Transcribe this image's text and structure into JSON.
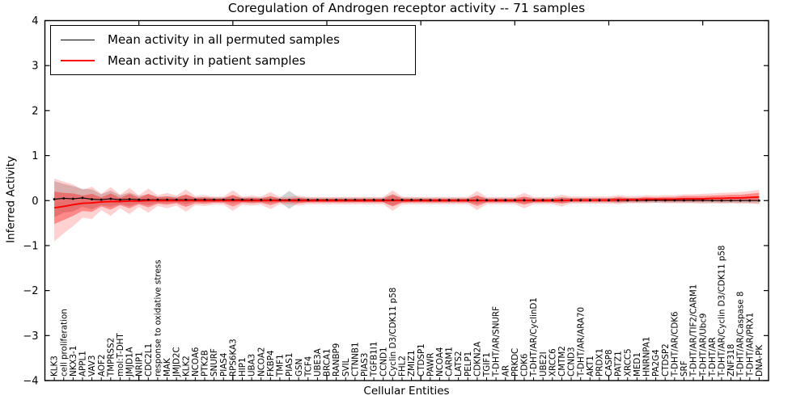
{
  "title": "Coregulation of Androgen receptor activity -- 71 samples",
  "legend": {
    "items": [
      {
        "label": "Mean activity in all permuted samples",
        "color": "#000000",
        "thickness": 1.5
      },
      {
        "label": "Mean activity in patient samples",
        "color": "#ff0000",
        "thickness": 2
      }
    ]
  },
  "chart_data": {
    "type": "line",
    "title": "Coregulation of Androgen receptor activity -- 71 samples",
    "xlabel": "Cellular Entities",
    "ylabel": "Inferred Activity",
    "ylim": [
      -4,
      4
    ],
    "yticks": [
      4,
      3,
      2,
      1,
      0,
      -1,
      -2,
      -3,
      -4
    ],
    "grid": false,
    "legend_position": "upper left",
    "colors": {
      "permuted": "#000000",
      "patient": "#ff0000",
      "band_outer": "rgba(255,0,0,0.18)",
      "band_inner": "rgba(255,0,0,0.35)",
      "band_permuted": "rgba(80,80,80,0.25)"
    },
    "categories": [
      "KLK3",
      "cell proliferation",
      "NKX3-1",
      "APPL1",
      "VAV3",
      "AOF2",
      "TMPRSS2",
      "mol:T-DHT",
      "JMJD1A",
      "NRIP1",
      "CDC2L1",
      "response to oxidative stress",
      "MAK",
      "JMJD2C",
      "KLK2",
      "NCOA6",
      "PTK2B",
      "SNURF",
      "PIAS4",
      "RPS6KA3",
      "HIP1",
      "UBA3",
      "NCOA2",
      "FKBP4",
      "TMF1",
      "PIAS1",
      "GSN",
      "TCF4",
      "UBE3A",
      "BRCA1",
      "RANBP9",
      "SVIL",
      "CTNNB1",
      "PIAS3",
      "TGFB1I1",
      "CCND1",
      "Cyclin D3/CDK11 p58",
      "FHL2",
      "ZMIZ1",
      "CTDSP1",
      "PAWR",
      "NCOA4",
      "CARM1",
      "LATS2",
      "PELP1",
      "CDKN2A",
      "TGIF1",
      "T-DHT/AR/SNURF",
      "AR",
      "PRKDC",
      "CDK6",
      "T-DHT/AR/CyclinD1",
      "UBE2I",
      "XRCC6",
      "CMTM2",
      "CCND3",
      "T-DHT/AR/ARA70",
      "AKT1",
      "PRDX1",
      "CASP8",
      "PATZ1",
      "XRCC5",
      "MED1",
      "HNRNPA1",
      "PA2G4",
      "CTDSP2",
      "T-DHT/AR/CDK6",
      "SRF",
      "T-DHT/AR/TIF2/CARM1",
      "T-DHT/AR/Ubc9",
      "T-DHT/AR",
      "T-DHT/AR/Cyclin D3/CDK11 p58",
      "ZNF318",
      "T-DHT/AR/Caspase 8",
      "T-DHT/AR/PRX1",
      "DNA-PK"
    ],
    "series": [
      {
        "name": "Mean activity in all permuted samples",
        "color": "#000000",
        "marker": "dot",
        "values": [
          0.03,
          0.05,
          0.04,
          0.06,
          0.03,
          0.02,
          0.04,
          0.02,
          0.03,
          0.02,
          0.02,
          0.02,
          0.02,
          0.02,
          0.02,
          0.02,
          0.02,
          0.02,
          0.02,
          0.02,
          0.02,
          0.015,
          0.015,
          0.015,
          0.015,
          0.015,
          0.015,
          0.015,
          0.015,
          0.015,
          0.015,
          0.015,
          0.015,
          0.015,
          0.015,
          0.015,
          0.015,
          0.015,
          0.015,
          0.015,
          0.01,
          0.01,
          0.01,
          0.01,
          0.01,
          0.01,
          0.01,
          0.01,
          0.01,
          0.01,
          0.01,
          0.01,
          0.01,
          0.01,
          0.01,
          0.01,
          0.01,
          0.01,
          0.01,
          0.01,
          0.005,
          0.005,
          0.005,
          0.005,
          0.005,
          0.005,
          0.005,
          0.005,
          0.005,
          0.005,
          0.0,
          0.0,
          0.0,
          0.0,
          0.0,
          0.0
        ]
      },
      {
        "name": "Mean activity in patient samples",
        "color": "#ff0000",
        "marker": "none",
        "values": [
          -0.16,
          -0.13,
          -0.09,
          -0.06,
          -0.05,
          -0.03,
          -0.02,
          -0.02,
          -0.01,
          -0.01,
          0,
          0,
          0,
          0,
          0,
          0,
          0,
          0,
          0,
          0,
          0,
          0,
          0,
          0,
          0,
          0,
          0,
          0,
          0,
          0,
          0,
          0,
          0,
          0,
          0,
          0,
          0,
          0,
          0,
          0,
          0,
          0,
          0,
          0,
          0,
          0,
          0,
          0,
          0,
          0,
          0,
          0,
          0,
          0,
          0,
          0.01,
          0.01,
          0.01,
          0.01,
          0.01,
          0.02,
          0.02,
          0.02,
          0.03,
          0.03,
          0.03,
          0.03,
          0.04,
          0.04,
          0.04,
          0.05,
          0.05,
          0.06,
          0.06,
          0.07,
          0.08
        ]
      }
    ],
    "bands": [
      {
        "name": "permuted-std",
        "center": "permuted",
        "color": "rgba(80,80,80,0.25)",
        "hw": [
          0.4,
          0.32,
          0.28,
          0.2,
          0.22,
          0.12,
          0.18,
          0.1,
          0.15,
          0.08,
          0.12,
          0.07,
          0.08,
          0.06,
          0.1,
          0.05,
          0.06,
          0.05,
          0.05,
          0.08,
          0.05,
          0.06,
          0.05,
          0.07,
          0.05,
          0.2,
          0.06,
          0.05,
          0.05,
          0.05,
          0.05,
          0.05,
          0.05,
          0.05,
          0.05,
          0.05,
          0.13,
          0.05,
          0.05,
          0.05,
          0.05,
          0.05,
          0.05,
          0.05,
          0.05,
          0.08,
          0.05,
          0.05,
          0.05,
          0.05,
          0.07,
          0.05,
          0.05,
          0.05,
          0.06,
          0.05,
          0.05,
          0.05,
          0.05,
          0.05,
          0.05,
          0.05,
          0.05,
          0.05,
          0.05,
          0.05,
          0.05,
          0.05,
          0.05,
          0.05,
          0.05,
          0.05,
          0.05,
          0.05,
          0.05,
          0.06
        ]
      },
      {
        "name": "patient-std-outer",
        "center": "patient",
        "color": "rgba(255,0,0,0.18)",
        "hw": [
          0.65,
          0.55,
          0.45,
          0.3,
          0.36,
          0.18,
          0.32,
          0.15,
          0.29,
          0.13,
          0.27,
          0.12,
          0.17,
          0.11,
          0.25,
          0.1,
          0.12,
          0.09,
          0.09,
          0.23,
          0.09,
          0.11,
          0.09,
          0.19,
          0.08,
          0.08,
          0.11,
          0.08,
          0.08,
          0.08,
          0.08,
          0.08,
          0.08,
          0.08,
          0.08,
          0.08,
          0.23,
          0.09,
          0.08,
          0.08,
          0.08,
          0.08,
          0.08,
          0.08,
          0.08,
          0.21,
          0.08,
          0.08,
          0.08,
          0.08,
          0.17,
          0.08,
          0.08,
          0.08,
          0.13,
          0.08,
          0.08,
          0.08,
          0.08,
          0.08,
          0.1,
          0.08,
          0.08,
          0.09,
          0.08,
          0.09,
          0.09,
          0.1,
          0.1,
          0.11,
          0.11,
          0.12,
          0.12,
          0.13,
          0.14,
          0.16
        ],
        "hw_lower": [
          0.75,
          0.6,
          0.48,
          0.32,
          0.36,
          0.18,
          0.32,
          0.15,
          0.29,
          0.13,
          0.27,
          0.12,
          0.17,
          0.11,
          0.25,
          0.1,
          0.12,
          0.09,
          0.09,
          0.23,
          0.09,
          0.11,
          0.09,
          0.19,
          0.08,
          0.08,
          0.11,
          0.08,
          0.08,
          0.08,
          0.08,
          0.08,
          0.08,
          0.08,
          0.08,
          0.08,
          0.23,
          0.09,
          0.08,
          0.08,
          0.08,
          0.08,
          0.08,
          0.08,
          0.08,
          0.21,
          0.08,
          0.08,
          0.08,
          0.08,
          0.17,
          0.08,
          0.08,
          0.08,
          0.13,
          0.08,
          0.08,
          0.08,
          0.08,
          0.08,
          0.1,
          0.08,
          0.08,
          0.09,
          0.08,
          0.09,
          0.09,
          0.1,
          0.1,
          0.11,
          0.11,
          0.12,
          0.12,
          0.13,
          0.14,
          0.16
        ]
      },
      {
        "name": "patient-std-inner",
        "center": "patient",
        "color": "rgba(255,0,0,0.35)",
        "hw": [
          0.36,
          0.3,
          0.25,
          0.17,
          0.2,
          0.1,
          0.18,
          0.08,
          0.16,
          0.07,
          0.15,
          0.07,
          0.09,
          0.06,
          0.14,
          0.06,
          0.07,
          0.05,
          0.05,
          0.13,
          0.05,
          0.06,
          0.05,
          0.1,
          0.04,
          0.04,
          0.06,
          0.04,
          0.04,
          0.04,
          0.04,
          0.04,
          0.04,
          0.04,
          0.04,
          0.04,
          0.13,
          0.05,
          0.04,
          0.04,
          0.04,
          0.04,
          0.04,
          0.04,
          0.04,
          0.12,
          0.04,
          0.04,
          0.04,
          0.04,
          0.09,
          0.04,
          0.04,
          0.04,
          0.07,
          0.04,
          0.04,
          0.04,
          0.04,
          0.04,
          0.06,
          0.04,
          0.04,
          0.05,
          0.04,
          0.05,
          0.05,
          0.06,
          0.06,
          0.06,
          0.06,
          0.07,
          0.07,
          0.07,
          0.08,
          0.09
        ]
      }
    ]
  }
}
